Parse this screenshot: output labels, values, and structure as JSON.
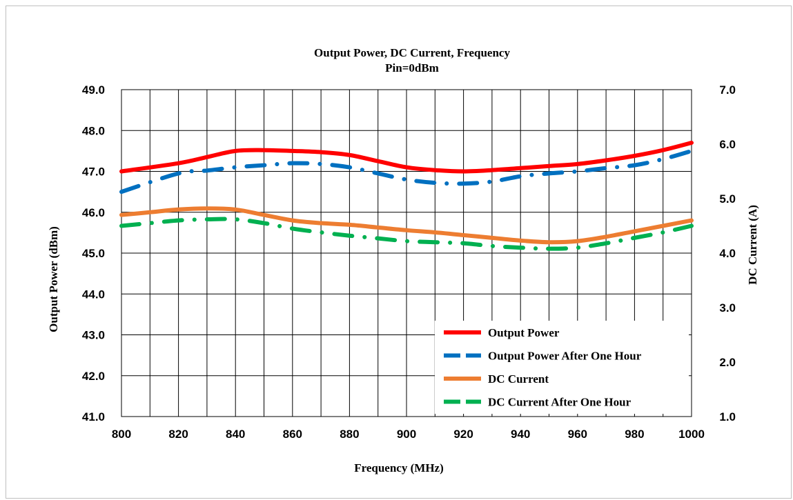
{
  "chart_data": {
    "type": "line",
    "title": "Output Power, DC Current,  Frequency",
    "subtitle": "Pin=0dBm",
    "xlabel": "Frequency (MHz)",
    "ylabel": "Output Power (dBm)",
    "y2label": "DC Current (A)",
    "xlim": [
      800,
      1000
    ],
    "ylim": [
      41.0,
      49.0
    ],
    "y2lim": [
      1.0,
      7.0
    ],
    "x_ticks": [
      "800",
      "820",
      "840",
      "860",
      "880",
      "900",
      "920",
      "940",
      "960",
      "980",
      "1000"
    ],
    "y_ticks": [
      "41.0",
      "42.0",
      "43.0",
      "44.0",
      "45.0",
      "46.0",
      "47.0",
      "48.0",
      "49.0"
    ],
    "y2_ticks": [
      "1.0",
      "2.0",
      "3.0",
      "4.0",
      "5.0",
      "6.0",
      "7.0"
    ],
    "grid": true,
    "legend_position": "bottom-right",
    "series": [
      {
        "name": "Output Power",
        "axis": "left",
        "color": "#ff0000",
        "style": "solid",
        "x": [
          800,
          820,
          830,
          840,
          850,
          860,
          870,
          880,
          890,
          900,
          910,
          920,
          930,
          940,
          950,
          960,
          970,
          980,
          990,
          1000
        ],
        "y": [
          47.0,
          47.2,
          47.35,
          47.5,
          47.52,
          47.5,
          47.47,
          47.4,
          47.25,
          47.1,
          47.03,
          47.0,
          47.03,
          47.08,
          47.13,
          47.18,
          47.27,
          47.38,
          47.52,
          47.7
        ]
      },
      {
        "name": "Output Power After One Hour",
        "axis": "left",
        "color": "#0070c0",
        "style": "dashdot",
        "x": [
          800,
          820,
          830,
          840,
          850,
          860,
          870,
          880,
          890,
          900,
          910,
          920,
          930,
          940,
          950,
          960,
          970,
          980,
          990,
          1000
        ],
        "y": [
          46.5,
          46.95,
          47.02,
          47.1,
          47.15,
          47.2,
          47.18,
          47.1,
          46.95,
          46.8,
          46.72,
          46.7,
          46.75,
          46.88,
          46.95,
          47.0,
          47.08,
          47.15,
          47.3,
          47.5
        ]
      },
      {
        "name": "DC Current",
        "axis": "right",
        "color": "#ed7d31",
        "style": "solid",
        "x": [
          800,
          810,
          820,
          830,
          840,
          850,
          860,
          870,
          880,
          890,
          900,
          910,
          920,
          930,
          940,
          950,
          960,
          970,
          980,
          990,
          1000
        ],
        "y": [
          4.7,
          4.75,
          4.8,
          4.82,
          4.8,
          4.7,
          4.6,
          4.55,
          4.52,
          4.47,
          4.42,
          4.38,
          4.33,
          4.28,
          4.23,
          4.2,
          4.22,
          4.3,
          4.4,
          4.5,
          4.6
        ]
      },
      {
        "name": "DC Current After One Hour",
        "axis": "right",
        "color": "#00b050",
        "style": "dashdot",
        "x": [
          800,
          810,
          820,
          830,
          840,
          850,
          860,
          870,
          880,
          890,
          900,
          910,
          920,
          930,
          940,
          950,
          960,
          970,
          980,
          990,
          1000
        ],
        "y": [
          4.5,
          4.55,
          4.6,
          4.62,
          4.62,
          4.55,
          4.45,
          4.38,
          4.32,
          4.27,
          4.22,
          4.2,
          4.18,
          4.13,
          4.1,
          4.08,
          4.1,
          4.18,
          4.28,
          4.38,
          4.5
        ]
      }
    ]
  }
}
